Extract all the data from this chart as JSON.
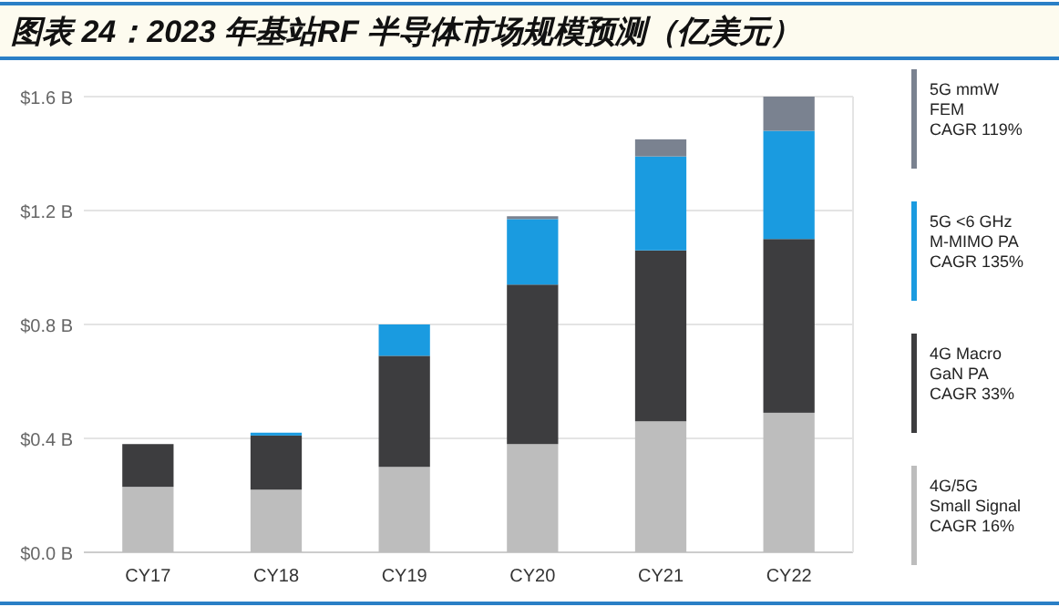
{
  "chart_data": {
    "type": "bar",
    "stacked": true,
    "title": "图表 24：2023 年基站RF 半导体市场规模预测（亿美元）",
    "categories": [
      "CY17",
      "CY18",
      "CY19",
      "CY20",
      "CY21",
      "CY22"
    ],
    "series": [
      {
        "name": "4G/5G\nSmall Signal\nCAGR 16%",
        "color": "#bdbdbd",
        "values": [
          0.23,
          0.22,
          0.3,
          0.38,
          0.46,
          0.49
        ]
      },
      {
        "name": "4G Macro\nGaN PA\nCAGR 33%",
        "color": "#3d3d3f",
        "values": [
          0.15,
          0.19,
          0.39,
          0.56,
          0.6,
          0.61
        ]
      },
      {
        "name": "5G <6 GHz\nM-MIMO  PA\nCAGR 135%",
        "color": "#1a9be0",
        "values": [
          null,
          0.01,
          0.11,
          0.23,
          0.33,
          0.38
        ]
      },
      {
        "name": "5G mmW\nFEM\nCAGR 119%",
        "color": "#7a8290",
        "values": [
          null,
          null,
          null,
          0.01,
          0.06,
          0.12
        ]
      }
    ],
    "ylim": [
      0,
      1.6
    ],
    "yticks": [
      {
        "value": 0,
        "label": "$0.0 B"
      },
      {
        "value": 0.4,
        "label": "$0.4 B"
      },
      {
        "value": 0.8,
        "label": "$0.8 B"
      },
      {
        "value": 1.2,
        "label": "$1.2 B"
      },
      {
        "value": 1.6,
        "label": "$1.6 B"
      }
    ],
    "grid": "y",
    "legend": "right"
  }
}
